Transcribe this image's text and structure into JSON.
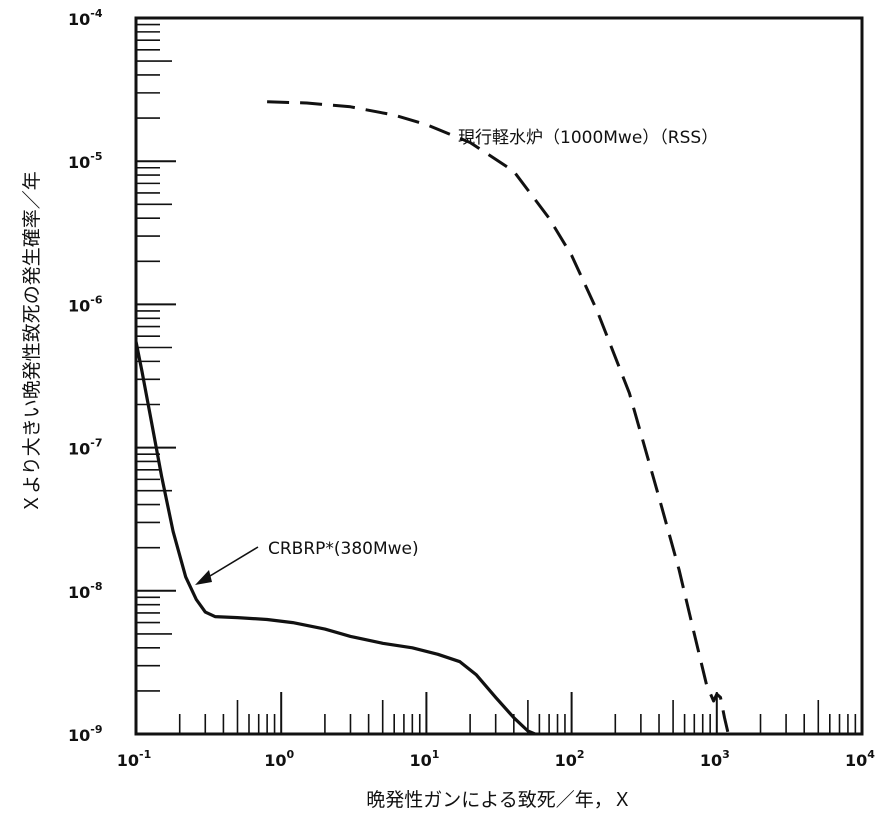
{
  "chart_data": {
    "type": "line",
    "xlabel": "晩発性ガンによる致死／年，Ｘ",
    "ylabel": "Ｘより大きい晩発性致死の発生確率／年",
    "x_scale": "log",
    "y_scale": "log",
    "xlim": [
      0.1,
      10000
    ],
    "ylim": [
      1e-09,
      0.0001
    ],
    "x_ticks": [
      {
        "value": 0.1,
        "base": "10",
        "exp": "-1"
      },
      {
        "value": 1,
        "base": "10",
        "exp": "0"
      },
      {
        "value": 10,
        "base": "10",
        "exp": "1"
      },
      {
        "value": 100,
        "base": "10",
        "exp": "2"
      },
      {
        "value": 1000,
        "base": "10",
        "exp": "3"
      },
      {
        "value": 10000,
        "base": "10",
        "exp": "4"
      }
    ],
    "y_ticks": [
      {
        "value": 1e-09,
        "base": "10",
        "exp": "-9"
      },
      {
        "value": 1e-08,
        "base": "10",
        "exp": "-8"
      },
      {
        "value": 1e-07,
        "base": "10",
        "exp": "-7"
      },
      {
        "value": 1e-06,
        "base": "10",
        "exp": "-6"
      },
      {
        "value": 1e-05,
        "base": "10",
        "exp": "-5"
      },
      {
        "value": 0.0001,
        "base": "10",
        "exp": "-4"
      }
    ],
    "grid": false,
    "series": [
      {
        "name": "CRBRP*(380Mwe)",
        "line_style": "solid",
        "color": "#111111",
        "points": [
          [
            0.1,
            5.5e-07
          ],
          [
            0.11,
            3.4e-07
          ],
          [
            0.125,
            1.7e-07
          ],
          [
            0.15,
            6.3e-08
          ],
          [
            0.18,
            2.6e-08
          ],
          [
            0.22,
            1.25e-08
          ],
          [
            0.26,
            8.7e-09
          ],
          [
            0.3,
            7.1e-09
          ],
          [
            0.35,
            6.6e-09
          ],
          [
            0.5,
            6.5e-09
          ],
          [
            0.8,
            6.3e-09
          ],
          [
            1.2,
            6e-09
          ],
          [
            2,
            5.4e-09
          ],
          [
            3,
            4.8e-09
          ],
          [
            5,
            4.3e-09
          ],
          [
            8,
            4e-09
          ],
          [
            12,
            3.6e-09
          ],
          [
            17,
            3.2e-09
          ],
          [
            22,
            2.6e-09
          ],
          [
            30,
            1.8e-09
          ],
          [
            40,
            1.3e-09
          ],
          [
            50,
            1.05e-09
          ],
          [
            56,
            1e-09
          ]
        ]
      },
      {
        "name": "現行軽水炉（1000Mwe）（RSS）",
        "line_style": "dashed",
        "color": "#111111",
        "points": [
          [
            0.8,
            2.6e-05
          ],
          [
            1.5,
            2.55e-05
          ],
          [
            3,
            2.4e-05
          ],
          [
            6,
            2.1e-05
          ],
          [
            10,
            1.8e-05
          ],
          [
            20,
            1.35e-05
          ],
          [
            40,
            8.5e-06
          ],
          [
            70,
            4e-06
          ],
          [
            100,
            2.2e-06
          ],
          [
            150,
            9e-07
          ],
          [
            250,
            2.4e-07
          ],
          [
            400,
            4.5e-08
          ],
          [
            550,
            1.4e-08
          ],
          [
            700,
            5e-09
          ],
          [
            850,
            2.2e-09
          ],
          [
            950,
            1.7e-09
          ],
          [
            1000,
            1.9e-09
          ],
          [
            1060,
            1.8e-09
          ],
          [
            1130,
            1.3e-09
          ],
          [
            1200,
            1e-09
          ]
        ]
      }
    ],
    "annotations": [
      {
        "text": "CRBRP*(380Mwe)",
        "series": 0,
        "arrow": true
      },
      {
        "text": "現行軽水炉（1000Mwe）（RSS）",
        "series": 1,
        "arrow": false
      }
    ]
  }
}
